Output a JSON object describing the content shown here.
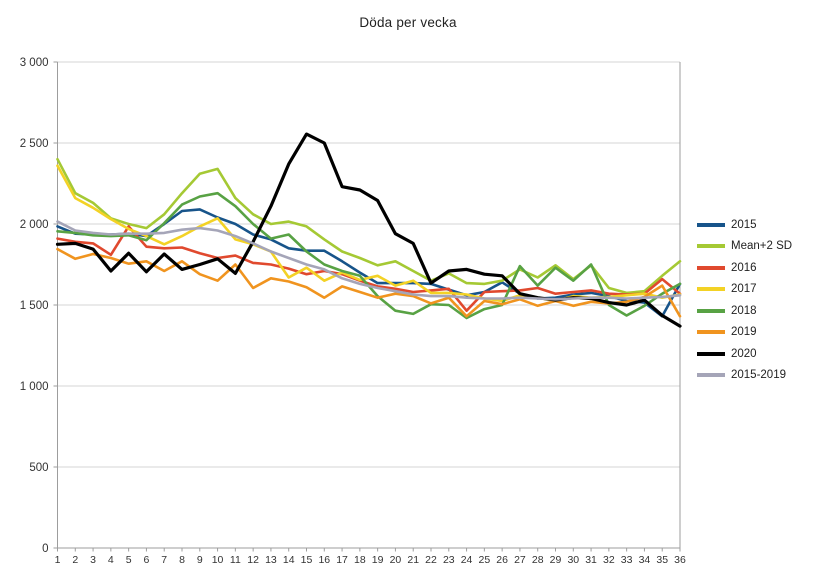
{
  "chart_data": {
    "type": "line",
    "title": "Döda per vecka",
    "legend_position": "right",
    "grid": "horizontal",
    "ylim": [
      0,
      3000
    ],
    "y_ticks": [
      0,
      500,
      1000,
      1500,
      2000,
      2500,
      3000
    ],
    "y_tick_labels": [
      "0",
      "500",
      "1 000",
      "1 500",
      "2 000",
      "2 500",
      "3 000"
    ],
    "x": [
      1,
      2,
      3,
      4,
      5,
      6,
      7,
      8,
      9,
      10,
      11,
      12,
      13,
      14,
      15,
      16,
      17,
      18,
      19,
      20,
      21,
      22,
      23,
      24,
      25,
      26,
      27,
      28,
      29,
      30,
      31,
      32,
      33,
      34,
      35,
      36
    ],
    "x_tick_labels": [
      "1",
      "2",
      "3",
      "4",
      "5",
      "6",
      "7",
      "8",
      "9",
      "10",
      "11",
      "12",
      "13",
      "14",
      "15",
      "16",
      "17",
      "18",
      "19",
      "20",
      "21",
      "22",
      "23",
      "24",
      "25",
      "26",
      "27",
      "28",
      "29",
      "30",
      "31",
      "32",
      "33",
      "34",
      "35",
      "36"
    ],
    "series": [
      {
        "name": "2015",
        "color": "#17548A",
        "values": [
          1985,
          1940,
          1935,
          1935,
          1940,
          1925,
          2000,
          2080,
          2090,
          2040,
          2000,
          1935,
          1905,
          1850,
          1835,
          1835,
          1770,
          1700,
          1635,
          1635,
          1635,
          1630,
          1595,
          1560,
          1580,
          1640,
          1570,
          1540,
          1545,
          1565,
          1575,
          1555,
          1525,
          1515,
          1430,
          1630
        ]
      },
      {
        "name": "Mean+2 SD",
        "color": "#A5C934",
        "values": [
          2400,
          2190,
          2130,
          2035,
          2000,
          1975,
          2060,
          2190,
          2310,
          2340,
          2160,
          2060,
          2000,
          2015,
          1985,
          1905,
          1830,
          1790,
          1745,
          1770,
          1710,
          1650,
          1695,
          1635,
          1630,
          1650,
          1720,
          1670,
          1745,
          1660,
          1745,
          1605,
          1575,
          1585,
          1680,
          1770
        ]
      },
      {
        "name": "2016",
        "color": "#E0492E",
        "values": [
          1910,
          1890,
          1880,
          1810,
          1985,
          1860,
          1850,
          1855,
          1820,
          1790,
          1805,
          1760,
          1750,
          1725,
          1690,
          1710,
          1690,
          1650,
          1615,
          1600,
          1580,
          1590,
          1600,
          1465,
          1580,
          1585,
          1590,
          1605,
          1570,
          1580,
          1590,
          1570,
          1565,
          1570,
          1660,
          1570
        ]
      },
      {
        "name": "2017",
        "color": "#F3D225",
        "values": [
          2360,
          2160,
          2100,
          2030,
          1970,
          1925,
          1875,
          1925,
          1985,
          2035,
          1905,
          1875,
          1830,
          1670,
          1730,
          1650,
          1700,
          1655,
          1680,
          1620,
          1650,
          1575,
          1575,
          1565,
          1540,
          1525,
          1560,
          1545,
          1525,
          1555,
          1545,
          1550,
          1560,
          1570,
          1545,
          1565
        ]
      },
      {
        "name": "2018",
        "color": "#58A244",
        "values": [
          1955,
          1945,
          1930,
          1925,
          1930,
          1900,
          2005,
          2120,
          2170,
          2190,
          2110,
          2000,
          1910,
          1935,
          1830,
          1750,
          1710,
          1680,
          1555,
          1465,
          1445,
          1505,
          1500,
          1420,
          1475,
          1500,
          1740,
          1620,
          1730,
          1650,
          1750,
          1500,
          1435,
          1495,
          1570,
          1630
        ]
      },
      {
        "name": "2019",
        "color": "#F0941F",
        "values": [
          1845,
          1785,
          1815,
          1790,
          1755,
          1770,
          1710,
          1770,
          1690,
          1650,
          1750,
          1605,
          1665,
          1645,
          1610,
          1545,
          1615,
          1580,
          1545,
          1570,
          1555,
          1510,
          1545,
          1430,
          1525,
          1505,
          1535,
          1495,
          1525,
          1495,
          1520,
          1510,
          1520,
          1550,
          1620,
          1430
        ]
      },
      {
        "name": "2020",
        "color": "#000000",
        "values": [
          1875,
          1880,
          1845,
          1710,
          1820,
          1705,
          1815,
          1720,
          1750,
          1785,
          1695,
          1890,
          2110,
          2370,
          2555,
          2500,
          2230,
          2210,
          2145,
          1940,
          1880,
          1635,
          1710,
          1720,
          1690,
          1680,
          1570,
          1545,
          1530,
          1545,
          1540,
          1515,
          1500,
          1530,
          1435,
          1370
        ]
      },
      {
        "name": "2015-2019",
        "color": "#A5A5B8",
        "values": [
          2015,
          1960,
          1945,
          1935,
          1940,
          1940,
          1945,
          1965,
          1975,
          1960,
          1925,
          1880,
          1830,
          1790,
          1750,
          1720,
          1665,
          1630,
          1605,
          1585,
          1565,
          1555,
          1555,
          1545,
          1540,
          1540,
          1545,
          1540,
          1535,
          1540,
          1545,
          1545,
          1540,
          1545,
          1550,
          1560
        ]
      }
    ]
  },
  "colors": {
    "gridline": "#d6d6d6",
    "axis": "#9d9d9d",
    "tick": "#9d9d9d",
    "label": "#333333"
  }
}
